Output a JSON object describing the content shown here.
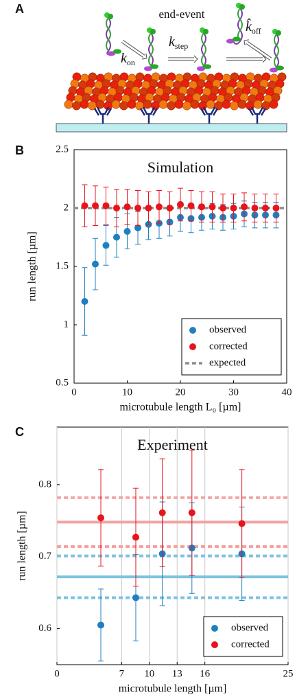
{
  "panel_a": {
    "label": "A",
    "title": "end-event",
    "rates": [
      {
        "symbol": "k",
        "subscript": "on"
      },
      {
        "symbol": "k",
        "subscript": "step"
      },
      {
        "symbol": "k̂",
        "subscript": "off"
      }
    ]
  },
  "chart_data": [
    {
      "type": "scatter",
      "panel": "B",
      "title": "Simulation",
      "xlabel": "microtubule length L₀ [µm]",
      "ylabel": "run length [µm]",
      "xlim": [
        0,
        40
      ],
      "xticks": [
        0,
        10,
        20,
        30,
        40
      ],
      "ylim": [
        0.5,
        2.5
      ],
      "yticks": [
        0.5,
        1,
        1.5,
        2,
        2.5
      ],
      "grid": false,
      "legend": "lower right",
      "x": [
        2,
        4,
        6,
        8,
        10,
        12,
        14,
        16,
        18,
        20,
        22,
        24,
        26,
        28,
        30,
        32,
        34,
        36,
        38
      ],
      "series": [
        {
          "name": "observed",
          "color": "#1f7fc0",
          "values": [
            1.2,
            1.52,
            1.68,
            1.75,
            1.8,
            1.83,
            1.86,
            1.87,
            1.88,
            1.92,
            1.91,
            1.92,
            1.93,
            1.92,
            1.93,
            1.95,
            1.94,
            1.94,
            1.94
          ],
          "errors": [
            0.29,
            0.22,
            0.17,
            0.17,
            0.15,
            0.14,
            0.13,
            0.13,
            0.12,
            0.12,
            0.12,
            0.11,
            0.11,
            0.11,
            0.11,
            0.11,
            0.11,
            0.11,
            0.11
          ]
        },
        {
          "name": "corrected",
          "color": "#e8141c",
          "values": [
            2.02,
            2.02,
            2.02,
            2.0,
            2.01,
            2.0,
            2.0,
            2.01,
            2.0,
            2.03,
            2.02,
            2.01,
            2.01,
            2.0,
            2.0,
            2.01,
            2.0,
            2.0,
            2.0
          ],
          "errors": [
            0.18,
            0.17,
            0.16,
            0.16,
            0.15,
            0.15,
            0.14,
            0.14,
            0.14,
            0.14,
            0.13,
            0.13,
            0.13,
            0.12,
            0.12,
            0.12,
            0.12,
            0.12,
            0.12
          ]
        }
      ],
      "reference_lines": [
        {
          "name": "expected",
          "value": 2,
          "color": "#8c8c8c",
          "style": "dashed"
        }
      ]
    },
    {
      "type": "scatter",
      "panel": "C",
      "title": "Experiment",
      "xlabel": "microtubule length [µm]",
      "ylabel": "run length [µm]",
      "xlim": [
        0,
        25
      ],
      "xticks": [
        0,
        7,
        10,
        13,
        16,
        25
      ],
      "ylim": [
        0.55,
        0.88
      ],
      "yticks": [
        0.6,
        0.7,
        0.8
      ],
      "grid": true,
      "legend": "lower right",
      "x": [
        4.75,
        8.53,
        11.4,
        14.6,
        20
      ],
      "series": [
        {
          "name": "observed",
          "color": "#1f7fc0",
          "values": [
            0.605,
            0.643,
            0.704,
            0.712,
            0.704
          ],
          "errors": [
            0.05,
            0.06,
            0.072,
            0.063,
            0.065
          ]
        },
        {
          "name": "corrected",
          "color": "#e8141c",
          "values": [
            0.754,
            0.727,
            0.761,
            0.761,
            0.746
          ],
          "errors": [
            0.067,
            0.068,
            0.075,
            0.087,
            0.075
          ]
        }
      ],
      "reference_lines": [
        {
          "value": 0.672,
          "color": "#7cc3df",
          "style": "solid"
        },
        {
          "value": 0.643,
          "color": "#7cc3df",
          "style": "dashed"
        },
        {
          "value": 0.701,
          "color": "#7cc3df",
          "style": "dashed"
        },
        {
          "value": 0.748,
          "color": "#f4a3a3",
          "style": "solid"
        },
        {
          "value": 0.714,
          "color": "#f4a3a3",
          "style": "dashed"
        },
        {
          "value": 0.782,
          "color": "#f4a3a3",
          "style": "dashed"
        }
      ]
    }
  ]
}
